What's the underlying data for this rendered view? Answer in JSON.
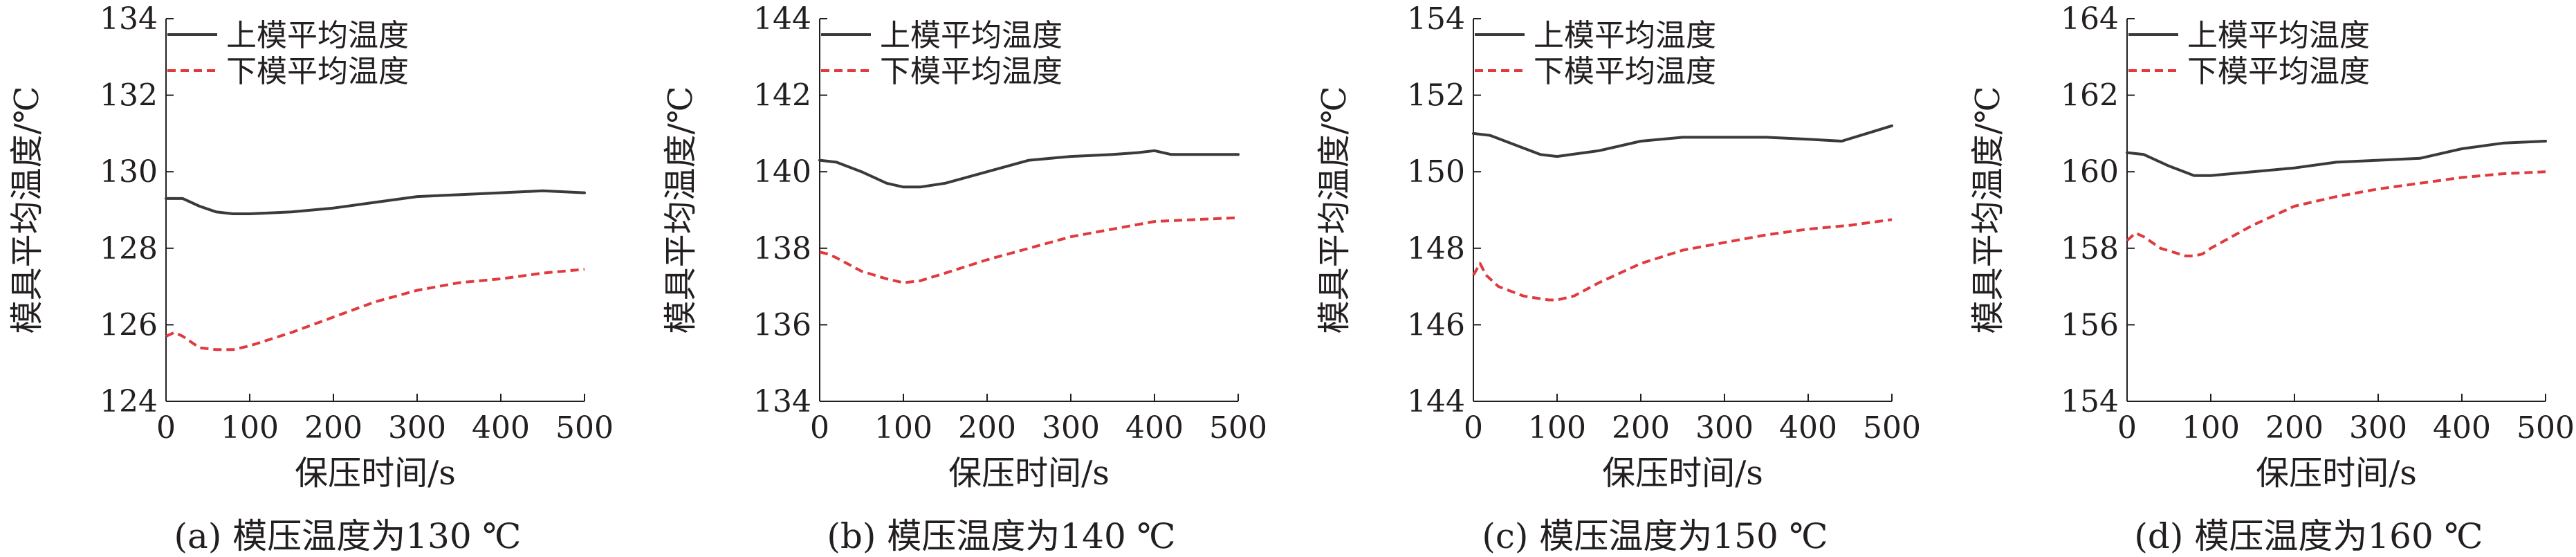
{
  "figure": {
    "panels": [
      {
        "caption": "(a) 模压温度为130 ℃"
      },
      {
        "caption": "(b) 模压温度为140 ℃"
      },
      {
        "caption": "(c) 模压温度为150 ℃"
      },
      {
        "caption": "(d) 模压温度为160 ℃"
      }
    ]
  },
  "colors": {
    "upper": "#3a3a3a",
    "lower": "#e03a3e",
    "axis": "#231f20"
  },
  "chart_data": [
    {
      "type": "line",
      "xlabel": "保压时间/s",
      "ylabel": "模具平均温度/℃",
      "xlim": [
        0,
        500
      ],
      "ylim": [
        124,
        134
      ],
      "xticks": [
        0,
        100,
        200,
        300,
        400,
        500
      ],
      "yticks": [
        124,
        126,
        128,
        130,
        132,
        134
      ],
      "grid": false,
      "legend": "top-left",
      "series": [
        {
          "name": "上模平均温度",
          "style": "solid",
          "x": [
            0,
            20,
            40,
            60,
            80,
            100,
            150,
            200,
            250,
            300,
            350,
            400,
            450,
            500
          ],
          "y": [
            129.3,
            129.3,
            129.1,
            128.95,
            128.9,
            128.9,
            128.95,
            129.05,
            129.2,
            129.35,
            129.4,
            129.45,
            129.5,
            129.45
          ]
        },
        {
          "name": "下模平均温度",
          "style": "dashed",
          "x": [
            0,
            10,
            20,
            40,
            60,
            80,
            100,
            150,
            200,
            250,
            300,
            350,
            400,
            450,
            500
          ],
          "y": [
            125.7,
            125.8,
            125.7,
            125.4,
            125.35,
            125.35,
            125.45,
            125.8,
            126.2,
            126.6,
            126.9,
            127.1,
            127.2,
            127.35,
            127.45
          ]
        }
      ]
    },
    {
      "type": "line",
      "xlabel": "保压时间/s",
      "ylabel": "模具平均温度/℃",
      "xlim": [
        0,
        500
      ],
      "ylim": [
        134,
        144
      ],
      "xticks": [
        0,
        100,
        200,
        300,
        400,
        500
      ],
      "yticks": [
        134,
        136,
        138,
        140,
        142,
        144
      ],
      "grid": false,
      "legend": "top-left",
      "series": [
        {
          "name": "上模平均温度",
          "style": "solid",
          "x": [
            0,
            20,
            50,
            80,
            100,
            120,
            150,
            200,
            250,
            300,
            350,
            380,
            400,
            420,
            450,
            500
          ],
          "y": [
            140.3,
            140.25,
            140.0,
            139.7,
            139.6,
            139.6,
            139.7,
            140.0,
            140.3,
            140.4,
            140.45,
            140.5,
            140.55,
            140.45,
            140.45,
            140.45
          ]
        },
        {
          "name": "下模平均温度",
          "style": "dashed",
          "x": [
            0,
            10,
            20,
            50,
            80,
            100,
            120,
            150,
            200,
            250,
            300,
            350,
            400,
            450,
            500
          ],
          "y": [
            137.9,
            137.85,
            137.75,
            137.4,
            137.2,
            137.1,
            137.15,
            137.35,
            137.7,
            138.0,
            138.3,
            138.5,
            138.7,
            138.75,
            138.8
          ]
        }
      ]
    },
    {
      "type": "line",
      "xlabel": "保压时间/s",
      "ylabel": "模具平均温度/℃",
      "xlim": [
        0,
        500
      ],
      "ylim": [
        144,
        154
      ],
      "xticks": [
        0,
        100,
        200,
        300,
        400,
        500
      ],
      "yticks": [
        144,
        146,
        148,
        150,
        152,
        154
      ],
      "grid": false,
      "legend": "top-left",
      "series": [
        {
          "name": "上模平均温度",
          "style": "solid",
          "x": [
            0,
            20,
            50,
            80,
            100,
            150,
            200,
            250,
            300,
            350,
            400,
            440,
            470,
            500
          ],
          "y": [
            151.0,
            150.95,
            150.7,
            150.45,
            150.4,
            150.55,
            150.8,
            150.9,
            150.9,
            150.9,
            150.85,
            150.8,
            151.0,
            151.2
          ]
        },
        {
          "name": "下模平均温度",
          "style": "dashed",
          "x": [
            0,
            8,
            15,
            30,
            60,
            90,
            100,
            120,
            150,
            200,
            250,
            300,
            350,
            400,
            450,
            500
          ],
          "y": [
            147.3,
            147.6,
            147.3,
            147.0,
            146.75,
            146.65,
            146.65,
            146.75,
            147.1,
            147.6,
            147.95,
            148.15,
            148.35,
            148.5,
            148.6,
            148.75
          ]
        }
      ]
    },
    {
      "type": "line",
      "xlabel": "保压时间/s",
      "ylabel": "模具平均温度/℃",
      "xlim": [
        0,
        500
      ],
      "ylim": [
        154,
        164
      ],
      "xticks": [
        0,
        100,
        200,
        300,
        400,
        500
      ],
      "yticks": [
        154,
        156,
        158,
        160,
        162,
        164
      ],
      "grid": false,
      "legend": "top-left",
      "series": [
        {
          "name": "上模平均温度",
          "style": "solid",
          "x": [
            0,
            20,
            50,
            80,
            100,
            150,
            200,
            250,
            300,
            350,
            400,
            450,
            500
          ],
          "y": [
            160.5,
            160.45,
            160.15,
            159.9,
            159.9,
            160.0,
            160.1,
            160.25,
            160.3,
            160.35,
            160.6,
            160.75,
            160.8
          ]
        },
        {
          "name": "下模平均温度",
          "style": "dashed",
          "x": [
            0,
            10,
            20,
            40,
            70,
            80,
            90,
            100,
            150,
            200,
            250,
            300,
            350,
            400,
            450,
            500
          ],
          "y": [
            158.2,
            158.4,
            158.3,
            158.0,
            157.8,
            157.8,
            157.85,
            158.0,
            158.6,
            159.1,
            159.35,
            159.55,
            159.7,
            159.85,
            159.95,
            160.0
          ]
        }
      ]
    }
  ]
}
